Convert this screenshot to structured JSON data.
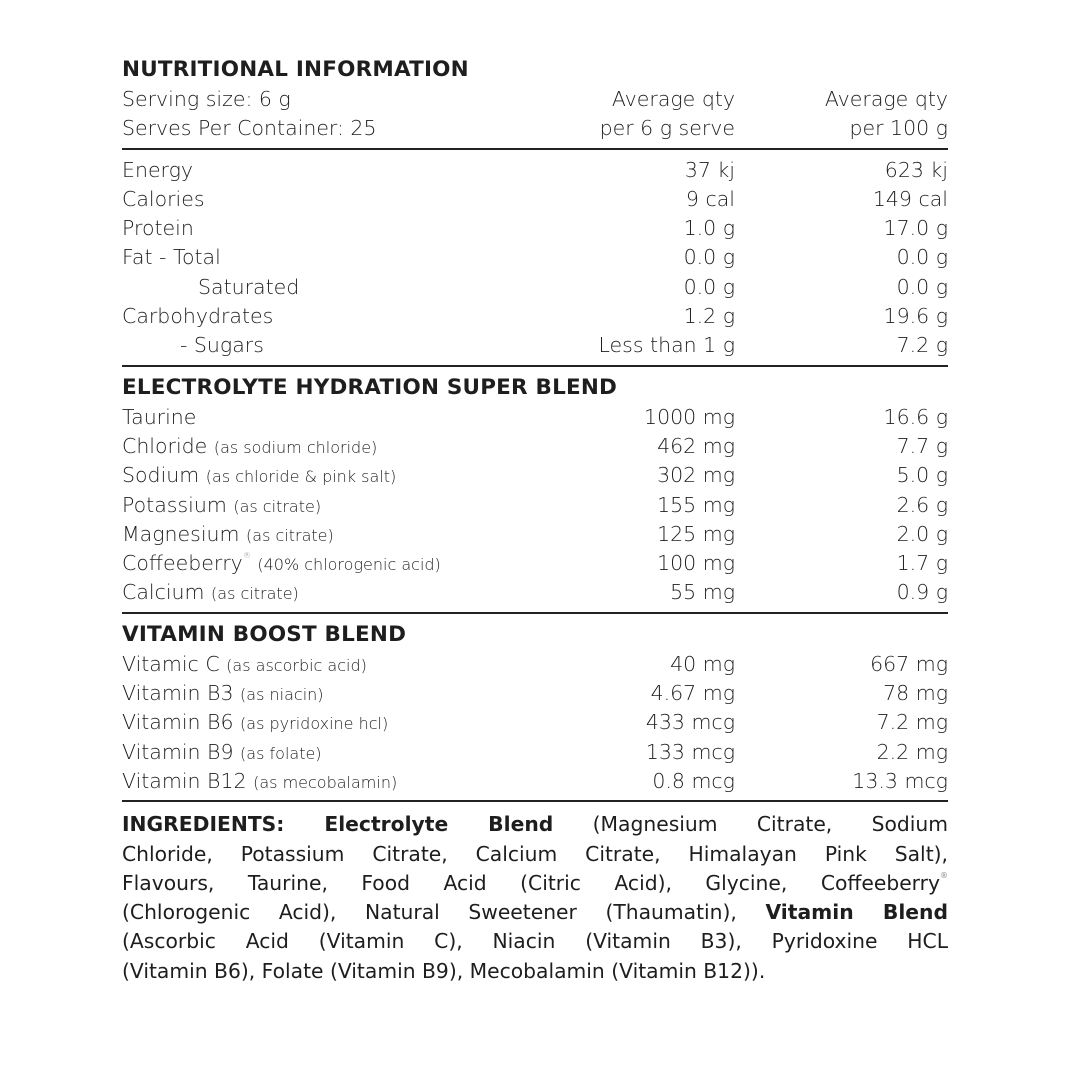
{
  "title": "NUTRITIONAL INFORMATION",
  "header": {
    "serving_size": "Serving size: 6 g",
    "serves": "Serves Per Container: 25",
    "col2_line1": "Average qty",
    "col2_line2": "per 6 g serve",
    "col3_line1": "Average qty",
    "col3_line2": "per 100 g"
  },
  "nutrition": [
    {
      "label": "Energy",
      "serve": "37 kj",
      "per100": "623 kj"
    },
    {
      "label": "Calories",
      "serve": "9 cal",
      "per100": "149 cal"
    },
    {
      "label": "Protein",
      "serve": "1.0 g",
      "per100": "17.0 g"
    },
    {
      "label": "Fat  - Total",
      "serve": "0.0 g",
      "per100": "0.0 g"
    },
    {
      "label": "Saturated",
      "serve": "0.0 g",
      "per100": "0.0 g"
    },
    {
      "label": "Carbohydrates",
      "serve": "1.2 g",
      "per100": "19.6 g"
    },
    {
      "label": "- Sugars",
      "serve": "Less than 1 g",
      "per100": "7.2 g"
    }
  ],
  "electrolyte": {
    "title": "ELECTROLYTE HYDRATION SUPER BLEND",
    "rows": [
      {
        "label": "Taurine",
        "note": "",
        "serve": "1000 mg",
        "per100": "16.6 g"
      },
      {
        "label": "Chloride",
        "note": "(as sodium chloride)",
        "serve": "462 mg",
        "per100": "7.7 g"
      },
      {
        "label": "Sodium",
        "note": "(as chloride & pink salt)",
        "serve": "302 mg",
        "per100": "5.0 g"
      },
      {
        "label": "Potassium",
        "note": "(as citrate)",
        "serve": "155 mg",
        "per100": "2.6 g"
      },
      {
        "label": "Magnesium",
        "note": "(as citrate)",
        "serve": "125 mg",
        "per100": "2.0 g"
      },
      {
        "label": "Coffeeberry",
        "sup": "®",
        "note": "(40% chlorogenic acid)",
        "serve": "100 mg",
        "per100": "1.7 g"
      },
      {
        "label": "Calcium",
        "note": "(as citrate)",
        "serve": "55 mg",
        "per100": "0.9 g"
      }
    ]
  },
  "vitamin": {
    "title": "VITAMIN BOOST BLEND",
    "rows": [
      {
        "label": "Vitamic C",
        "note": "(as ascorbic acid)",
        "serve": "40 mg",
        "per100": "667 mg"
      },
      {
        "label": "Vitamin B3",
        "note": "(as niacin)",
        "serve": "4.67 mg",
        "per100": "78 mg"
      },
      {
        "label": "Vitamin B6",
        "note": "(as pyridoxine hcl)",
        "serve": "433 mcg",
        "per100": "7.2 mg"
      },
      {
        "label": "Vitamin B9",
        "note": "(as folate)",
        "serve": "133 mcg",
        "per100": "2.2 mg"
      },
      {
        "label": "Vitamin B12",
        "note": "(as mecobalamin)",
        "serve": "0.8 mcg",
        "per100": "13.3 mcg"
      }
    ]
  },
  "ingredients": {
    "l1_bold": "INGREDIENTS: Electrolyte Blend",
    "l1": " (Magnesium Citrate, Sodium",
    "l2": "Chloride, Potassium Citrate, Calcium Citrate, Himalayan Pink Salt),",
    "l3": "Flavours, Taurine, Food Acid (Citric Acid), Glycine, Coffeeberry",
    "l3_sup": "®",
    "l4": "(Chlorogenic Acid), Natural Sweetener (Thaumatin), ",
    "l4_bold": "Vitamin Blend",
    "l5": "(Ascorbic Acid (Vitamin C), Niacin (Vitamin B3), Pyridoxine HCL",
    "l6": "(Vitamin B6), Folate (Vitamin B9), Mecobalamin (Vitamin B12))."
  }
}
